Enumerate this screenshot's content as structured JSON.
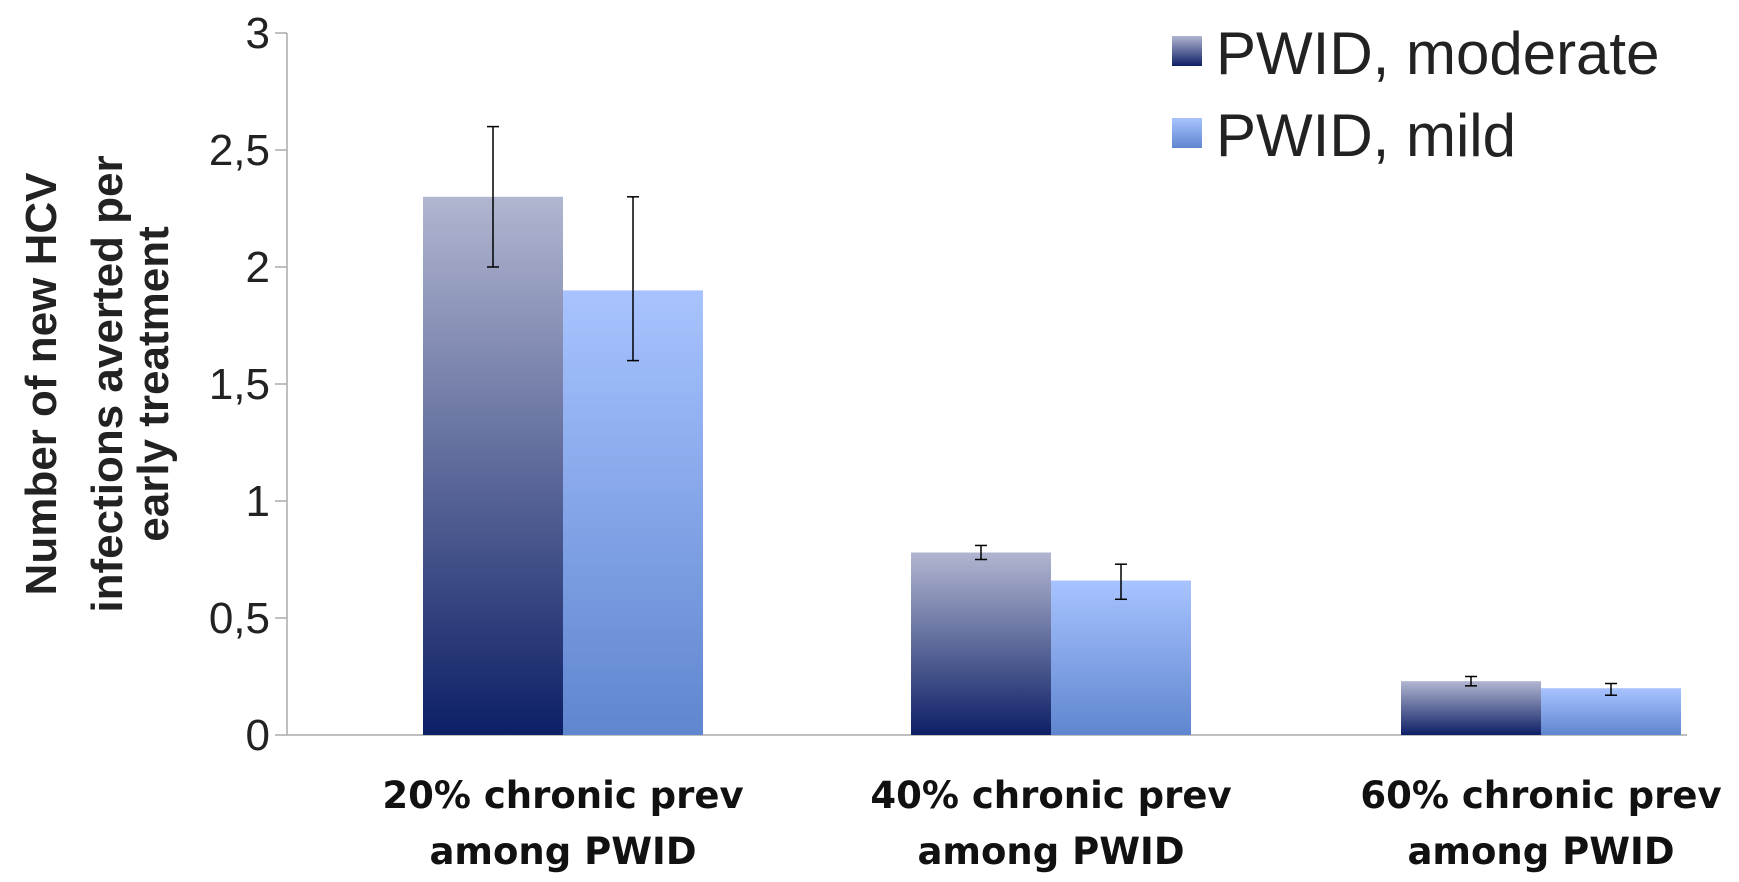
{
  "chart_data": {
    "type": "bar",
    "ylabel_lines": [
      "Number of new HCV",
      "infections averted per",
      "early treatment"
    ],
    "xlabel": "",
    "ylim": [
      0,
      3
    ],
    "yticks": [
      {
        "value": 0,
        "label": "0"
      },
      {
        "value": 0.5,
        "label": "0,5"
      },
      {
        "value": 1,
        "label": "1"
      },
      {
        "value": 1.5,
        "label": "1,5"
      },
      {
        "value": 2,
        "label": "2"
      },
      {
        "value": 2.5,
        "label": "2,5"
      },
      {
        "value": 3,
        "label": "3"
      }
    ],
    "categories": [
      [
        "20% chronic prev",
        "among PWID"
      ],
      [
        "40% chronic prev",
        "among PWID"
      ],
      [
        "60% chronic prev",
        "among PWID"
      ]
    ],
    "series": [
      {
        "name": "PWID, moderate",
        "values": [
          2.3,
          0.78,
          0.23
        ],
        "error_low": [
          2.0,
          0.75,
          0.21
        ],
        "error_high": [
          2.6,
          0.81,
          0.25
        ],
        "color_top": "#b1b6d0",
        "color_bottom": "#0d1f66"
      },
      {
        "name": "PWID, mild",
        "values": [
          1.9,
          0.66,
          0.2
        ],
        "error_low": [
          1.6,
          0.58,
          0.17
        ],
        "error_high": [
          2.3,
          0.73,
          0.22
        ],
        "color_top": "#a8c3ff",
        "color_bottom": "#5f86cf"
      }
    ],
    "legend_position": "top-right",
    "grid": false,
    "axis_color": "#aaaaaa",
    "errorbar_color": "#000000"
  }
}
